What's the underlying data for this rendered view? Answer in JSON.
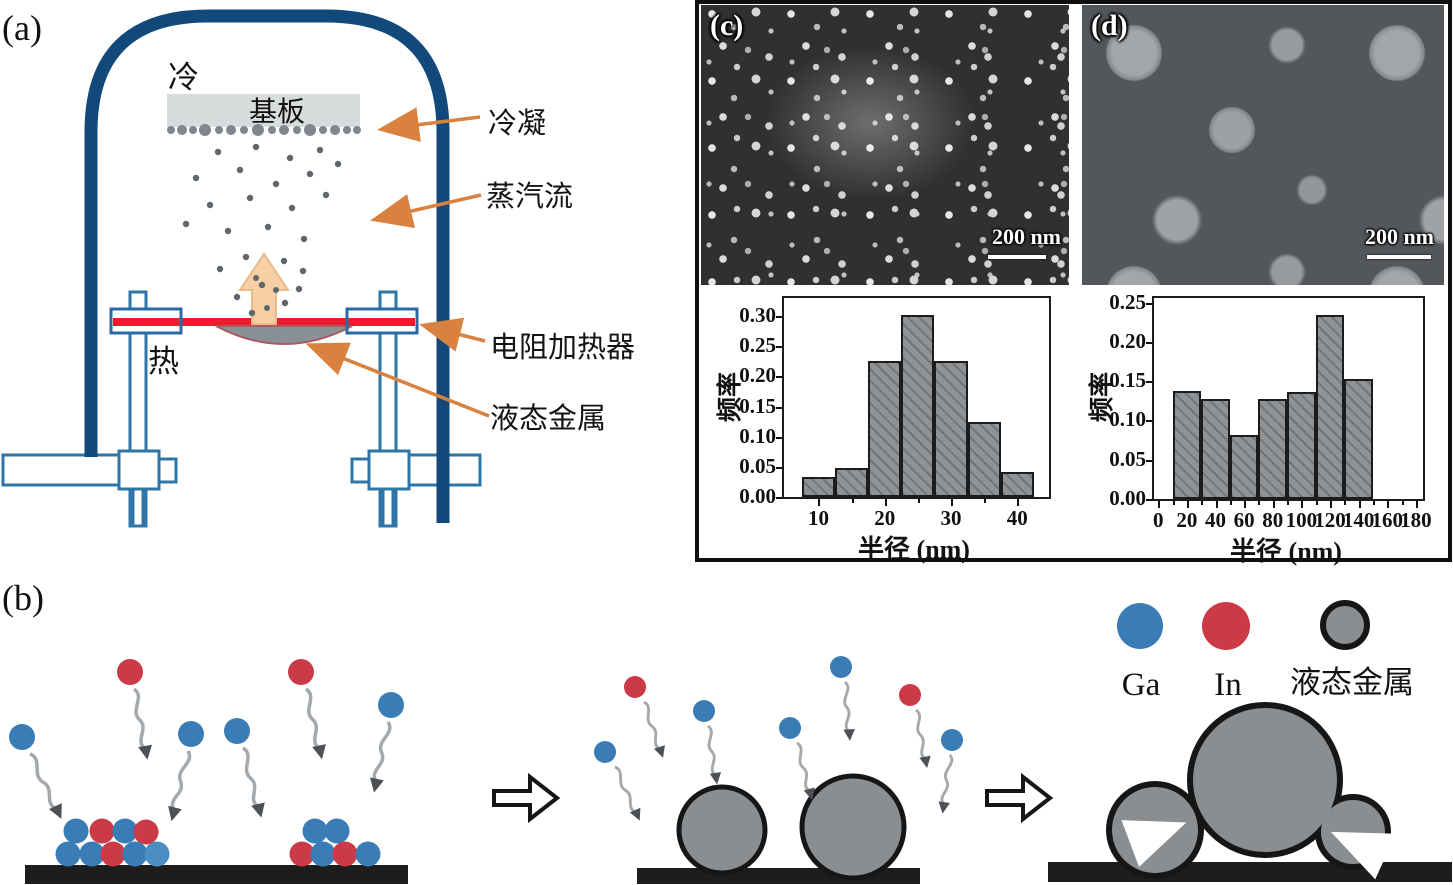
{
  "figure": {
    "background": "#ffffff"
  },
  "panel_a": {
    "label": "(a)",
    "cold_label": "冷",
    "substrate_label": "基板",
    "hot_label": "热",
    "annotations": {
      "condensation": "冷凝",
      "vapor_flow": "蒸汽流",
      "resistance_heater": "电阻加热器",
      "liquid_metal": "液态金属"
    },
    "colors": {
      "chamber": "#11497b",
      "heater_wire": "#ea1c2e",
      "annotation_arrow": "#d9813f",
      "vapor_arrow": "#f6d0a4",
      "substrate": "#d9dcdd",
      "metal_droplet": "#8a9196"
    }
  },
  "panel_b": {
    "label": "(b)",
    "legend": [
      {
        "name": "Ga",
        "color": "#3a7cb6"
      },
      {
        "name": "In",
        "color": "#cc3a47"
      },
      {
        "name": "液态金属",
        "color": "#8a8e91"
      }
    ]
  },
  "panel_c": {
    "label": "(c)",
    "scale_bar": "200 nm"
  },
  "panel_d": {
    "label": "(d)",
    "scale_bar": "200 nm"
  },
  "chart_data": [
    {
      "type": "bar",
      "panel": "c",
      "title": "",
      "xlabel": "半径 (nm)",
      "ylabel": "频率",
      "xlim": [
        4.8,
        44.8
      ],
      "ylim": [
        0,
        0.33
      ],
      "xticks": [
        10,
        20,
        30,
        40
      ],
      "xminor": [
        15,
        25,
        35
      ],
      "yticks": [
        0,
        0.05,
        0.1,
        0.15,
        0.2,
        0.25,
        0.3
      ],
      "grid": false,
      "bars": {
        "centers": [
          10,
          15,
          20,
          25,
          30,
          35,
          40
        ],
        "width": 5,
        "values": [
          0.034,
          0.048,
          0.225,
          0.302,
          0.225,
          0.125,
          0.042
        ]
      },
      "bar_color": "#8f9396"
    },
    {
      "type": "bar",
      "panel": "d",
      "title": "",
      "xlabel": "半径 (nm)",
      "ylabel": "频率",
      "xlim": [
        -3,
        185
      ],
      "ylim": [
        0,
        0.256
      ],
      "xticks": [
        0,
        20,
        40,
        60,
        80,
        100,
        120,
        140,
        160,
        180
      ],
      "xminor": [
        10,
        30,
        50,
        70,
        90,
        110,
        130,
        150,
        170
      ],
      "yticks": [
        0,
        0.05,
        0.1,
        0.15,
        0.2,
        0.25
      ],
      "grid": false,
      "bars": {
        "centers": [
          20,
          40,
          60,
          80,
          100,
          120,
          140
        ],
        "width": 20,
        "values": [
          0.137,
          0.128,
          0.081,
          0.128,
          0.136,
          0.234,
          0.153
        ]
      },
      "bar_color": "#8f9396"
    }
  ]
}
